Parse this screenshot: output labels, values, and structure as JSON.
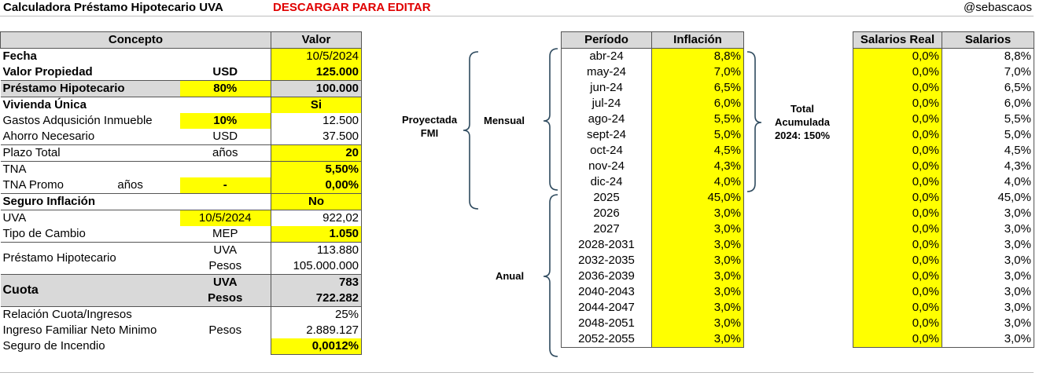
{
  "header": {
    "title": "Calculadora Préstamo Hipotecario UVA",
    "download_label": "DESCARGAR PARA EDITAR",
    "handle": "@sebascaos"
  },
  "left_table": {
    "col_concept": "Concepto",
    "col_value": "Valor",
    "fecha_label": "Fecha",
    "fecha_value": "10/5/2024",
    "valor_prop_label": "Valor Propiedad",
    "valor_prop_unit": "USD",
    "valor_prop_value": "125.000",
    "prestamo_label": "Préstamo Hipotecario",
    "prestamo_pct": "80%",
    "prestamo_value": "100.000",
    "vivienda_label": "Vivienda Única",
    "vivienda_value": "Si",
    "gastos_label": "Gastos Adqusición Inmueble",
    "gastos_pct": "10%",
    "gastos_value": "12.500",
    "ahorro_label": "Ahorro Necesario",
    "ahorro_unit": "USD",
    "ahorro_value": "37.500",
    "plazo_label": "Plazo Total",
    "plazo_unit": "años",
    "plazo_value": "20",
    "tna_label": "TNA",
    "tna_value": "5,50%",
    "tna_promo_label": "TNA Promo",
    "tna_promo_unit": "años",
    "tna_promo_years": "-",
    "tna_promo_value": "0,00%",
    "seguro_inf_label": "Seguro Inflación",
    "seguro_inf_value": "No",
    "uva_label": "UVA",
    "uva_date": "10/5/2024",
    "uva_value": "922,02",
    "tc_label": "Tipo de Cambio",
    "tc_unit": "MEP",
    "tc_value": "1.050",
    "ph_label": "Préstamo Hipotecario",
    "ph_uva_unit": "UVA",
    "ph_uva_value": "113.880",
    "ph_pesos_unit": "Pesos",
    "ph_pesos_value": "105.000.000",
    "cuota_label": "Cuota",
    "cuota_uva_unit": "UVA",
    "cuota_uva_value": "783",
    "cuota_pesos_unit": "Pesos",
    "cuota_pesos_value": "722.282",
    "relacion_label": "Relación Cuota/Ingresos",
    "relacion_value": "25%",
    "ingreso_label": "Ingreso Familiar Neto Minimo",
    "ingreso_unit": "Pesos",
    "ingreso_value": "2.889.127",
    "incendio_label": "Seguro de Incendio",
    "incendio_value": "0,0012%"
  },
  "labels": {
    "proyectada": "Proyectada",
    "fmi": "FMI",
    "mensual": "Mensual",
    "anual": "Anual",
    "total": "Total",
    "acumulada": "Acumulada",
    "acum_2024": "2024: 150%"
  },
  "inflation_table": {
    "col_period": "Período",
    "col_inflation": "Inflación",
    "rows": [
      {
        "period": "abr-24",
        "inflation": "8,8%"
      },
      {
        "period": "may-24",
        "inflation": "7,0%"
      },
      {
        "period": "jun-24",
        "inflation": "6,5%"
      },
      {
        "period": "jul-24",
        "inflation": "6,0%"
      },
      {
        "period": "ago-24",
        "inflation": "5,5%"
      },
      {
        "period": "sept-24",
        "inflation": "5,0%"
      },
      {
        "period": "oct-24",
        "inflation": "4,5%"
      },
      {
        "period": "nov-24",
        "inflation": "4,3%"
      },
      {
        "period": "dic-24",
        "inflation": "4,0%"
      },
      {
        "period": "2025",
        "inflation": "45,0%"
      },
      {
        "period": "2026",
        "inflation": "3,0%"
      },
      {
        "period": "2027",
        "inflation": "3,0%"
      },
      {
        "period": "2028-2031",
        "inflation": "3,0%"
      },
      {
        "period": "2032-2035",
        "inflation": "3,0%"
      },
      {
        "period": "2036-2039",
        "inflation": "3,0%"
      },
      {
        "period": "2040-2043",
        "inflation": "3,0%"
      },
      {
        "period": "2044-2047",
        "inflation": "3,0%"
      },
      {
        "period": "2048-2051",
        "inflation": "3,0%"
      },
      {
        "period": "2052-2055",
        "inflation": "3,0%"
      }
    ]
  },
  "salary_table": {
    "col_real": "Salarios Real",
    "col_salary": "Salarios",
    "rows": [
      {
        "real": "0,0%",
        "salary": "8,8%"
      },
      {
        "real": "0,0%",
        "salary": "7,0%"
      },
      {
        "real": "0,0%",
        "salary": "6,5%"
      },
      {
        "real": "0,0%",
        "salary": "6,0%"
      },
      {
        "real": "0,0%",
        "salary": "5,5%"
      },
      {
        "real": "0,0%",
        "salary": "5,0%"
      },
      {
        "real": "0,0%",
        "salary": "4,5%"
      },
      {
        "real": "0,0%",
        "salary": "4,3%"
      },
      {
        "real": "0,0%",
        "salary": "4,0%"
      },
      {
        "real": "0,0%",
        "salary": "45,0%"
      },
      {
        "real": "0,0%",
        "salary": "3,0%"
      },
      {
        "real": "0,0%",
        "salary": "3,0%"
      },
      {
        "real": "0,0%",
        "salary": "3,0%"
      },
      {
        "real": "0,0%",
        "salary": "3,0%"
      },
      {
        "real": "0,0%",
        "salary": "3,0%"
      },
      {
        "real": "0,0%",
        "salary": "3,0%"
      },
      {
        "real": "0,0%",
        "salary": "3,0%"
      },
      {
        "real": "0,0%",
        "salary": "3,0%"
      },
      {
        "real": "0,0%",
        "salary": "3,0%"
      }
    ]
  },
  "colors": {
    "highlight": "#ffff00",
    "header_gray": "#d9d9d9",
    "download_red": "#e00000",
    "bracket": "#2e4a5e"
  }
}
